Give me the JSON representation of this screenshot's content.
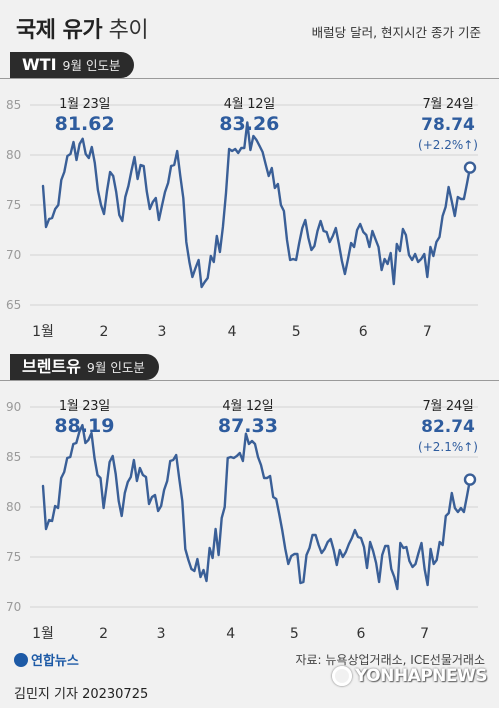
{
  "header": {
    "title_strong": "국제 유가",
    "title_light": "추이",
    "subtitle": "배럴당 달러, 현지시간 종가 기준"
  },
  "chart_data": [
    {
      "type": "line",
      "section_label": "WTI",
      "section_sublabel": "9월 인도분",
      "ylim": [
        65,
        85
      ],
      "yticks": [
        65,
        70,
        75,
        80,
        85
      ],
      "xticks": [
        "1월",
        "2",
        "3",
        "4",
        "5",
        "6",
        "7"
      ],
      "x_tick_index": [
        0,
        20,
        39,
        62,
        83,
        105,
        126
      ],
      "values": [
        76.9,
        72.8,
        73.6,
        73.7,
        74.6,
        75.0,
        77.5,
        78.3,
        79.9,
        80.1,
        81.3,
        79.5,
        81.1,
        81.62,
        80.1,
        79.7,
        80.8,
        79.2,
        76.5,
        75.0,
        74.1,
        76.4,
        78.3,
        77.9,
        76.3,
        74.0,
        73.4,
        75.8,
        76.9,
        78.4,
        79.8,
        77.6,
        79.0,
        78.9,
        76.4,
        74.6,
        75.3,
        75.7,
        73.5,
        74.9,
        76.3,
        77.2,
        78.9,
        79.0,
        80.4,
        77.9,
        75.7,
        71.3,
        69.3,
        67.8,
        68.7,
        69.5,
        66.8,
        67.3,
        67.7,
        69.9,
        69.3,
        71.9,
        70.3,
        72.8,
        76.2,
        80.6,
        80.4,
        80.6,
        80.2,
        80.7,
        80.7,
        83.26,
        80.5,
        81.9,
        81.5,
        80.9,
        80.3,
        79.1,
        77.9,
        78.7,
        76.7,
        77.1,
        75.0,
        74.4,
        71.5,
        69.5,
        69.6,
        69.5,
        71.2,
        72.7,
        73.5,
        71.7,
        70.5,
        70.9,
        72.4,
        73.4,
        72.4,
        72.3,
        71.3,
        71.9,
        72.7,
        71.1,
        69.4,
        68.1,
        69.6,
        71.2,
        70.8,
        72.5,
        73.1,
        72.3,
        72.0,
        70.8,
        72.4,
        71.6,
        70.8,
        68.5,
        69.6,
        69.1,
        70.2,
        67.1,
        71.1,
        70.4,
        72.6,
        72.0,
        70.0,
        69.5,
        70.1,
        69.3,
        69.6,
        70.1,
        67.8,
        70.8,
        69.9,
        71.3,
        71.8,
        73.9,
        74.8,
        76.8,
        75.4,
        73.9,
        75.8,
        75.6,
        75.6,
        77.1,
        78.74
      ],
      "annotations": [
        {
          "date": "1월 23일",
          "value": "81.62",
          "index": 13
        },
        {
          "date": "4월 12일",
          "value": "83.26",
          "index": 67
        },
        {
          "date": "7월 24일",
          "value": "78.74",
          "change": "(+2.2%↑)",
          "index": 140
        }
      ]
    },
    {
      "type": "line",
      "section_label": "브렌트유",
      "section_sublabel": "9월 인도분",
      "ylim": [
        70,
        90
      ],
      "yticks": [
        70,
        75,
        80,
        85,
        90
      ],
      "xticks": [
        "1월",
        "2",
        "3",
        "4",
        "5",
        "6",
        "7"
      ],
      "x_tick_index": [
        0,
        20,
        39,
        62,
        83,
        105,
        126
      ],
      "values": [
        82.1,
        77.8,
        78.7,
        78.6,
        80.1,
        79.9,
        82.9,
        83.5,
        84.9,
        85.0,
        86.3,
        86.4,
        87.5,
        88.19,
        86.4,
        86.7,
        87.4,
        84.9,
        83.2,
        82.9,
        79.9,
        82.1,
        84.5,
        85.1,
        83.3,
        80.6,
        79.1,
        81.4,
        82.5,
        83.0,
        84.7,
        82.6,
        83.9,
        83.2,
        83.0,
        80.3,
        81.0,
        81.2,
        79.6,
        80.1,
        81.7,
        82.6,
        84.6,
        84.7,
        85.2,
        82.8,
        80.6,
        75.8,
        74.7,
        73.8,
        73.6,
        74.8,
        73.0,
        73.7,
        72.6,
        75.9,
        74.9,
        77.8,
        75.2,
        78.9,
        80.0,
        84.9,
        85.0,
        84.9,
        85.1,
        85.4,
        84.6,
        87.33,
        86.3,
        86.6,
        86.3,
        85.0,
        84.2,
        82.9,
        82.9,
        83.1,
        81.0,
        80.8,
        79.3,
        77.7,
        75.8,
        74.3,
        75.1,
        75.3,
        75.3,
        72.4,
        72.5,
        75.2,
        75.9,
        77.2,
        77.2,
        76.2,
        75.4,
        75.8,
        76.5,
        76.8,
        75.7,
        74.2,
        75.7,
        75.0,
        75.5,
        76.3,
        76.9,
        77.7,
        77.0,
        76.9,
        76.0,
        73.9,
        76.5,
        75.6,
        74.4,
        72.5,
        75.2,
        76.1,
        76.1,
        73.8,
        73.0,
        71.8,
        76.4,
        75.9,
        76.0,
        74.6,
        74.0,
        74.3,
        75.4,
        76.4,
        73.8,
        72.2,
        75.8,
        74.3,
        74.7,
        76.5,
        76.2,
        79.1,
        79.4,
        81.4,
        79.9,
        79.5,
        79.9,
        79.5,
        81.1,
        82.74
      ],
      "annotations": [
        {
          "date": "1월 23일",
          "value": "88.19",
          "index": 13
        },
        {
          "date": "4월 12일",
          "value": "87.33",
          "index": 67
        },
        {
          "date": "7월 24일",
          "value": "82.74",
          "change": "(+2.1%↑)",
          "index": 140
        }
      ]
    }
  ],
  "footer": {
    "source": "자료: 뉴욕상업거래소, ICE선물거래소",
    "author": "김민지 기자  20230725",
    "agency_logo": "연합뉴스",
    "watermark": "YONHAPNEWS"
  },
  "colors": {
    "line": "#3a5f97",
    "annotation": "#2e5c9e",
    "background": "#f1f1f1",
    "axis_text": "#9a9a9a"
  }
}
